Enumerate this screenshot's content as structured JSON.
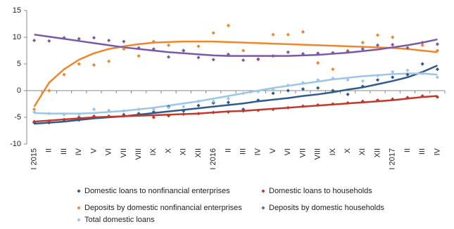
{
  "chart_data": {
    "type": "scatter-trend",
    "categories": [
      "I 2015",
      "II",
      "III",
      "IV",
      "V",
      "VI",
      "VII",
      "VIII",
      "IX",
      "X",
      "XI",
      "XII",
      "I 2016",
      "II",
      "III",
      "IV",
      "V",
      "VI",
      "VII",
      "VIII",
      "IX",
      "X",
      "XI",
      "XII",
      "I 2017",
      "II",
      "III",
      "IV"
    ],
    "ylim": [
      -10,
      15
    ],
    "yticks": [
      -10,
      -5,
      0,
      5,
      10,
      15
    ],
    "grid": false,
    "series": [
      {
        "name": "Domestic loans to nonfinancial enterprises",
        "color": "#2f5b8c",
        "values": [
          -6,
          -6,
          -5.5,
          -5.5,
          -5,
          -4.8,
          -4.5,
          -4.3,
          -4,
          -3,
          -3.8,
          -2.8,
          -2.3,
          -2.2,
          -3.5,
          -1.8,
          -0.5,
          0,
          0.3,
          0.5,
          0,
          -0.7,
          0.8,
          2,
          2.5,
          3,
          5,
          4
        ],
        "trend": [
          -6.2,
          -6,
          -5.8,
          -5.5,
          -5.2,
          -5,
          -4.8,
          -4.5,
          -4.2,
          -3.9,
          -3.6,
          -3.3,
          -3,
          -2.7,
          -2.4,
          -2,
          -1.7,
          -1.4,
          -1,
          -0.7,
          -0.3,
          0.2,
          0.6,
          1.2,
          1.8,
          2.5,
          3.5,
          4.7
        ]
      },
      {
        "name": "Domestic loans to households",
        "color": "#c0392b",
        "values": [
          -5.8,
          -5.7,
          -5.4,
          -5,
          -4.8,
          -4.8,
          -4.7,
          -4.6,
          -5,
          -4.7,
          -4.4,
          -4.3,
          -4.1,
          -4,
          -3.8,
          -3.7,
          -3.5,
          -3.2,
          -2.9,
          -2.7,
          -2.5,
          -2.3,
          -2,
          -1.8,
          -1.6,
          -1.3,
          -1,
          -1.2
        ],
        "trend": [
          -5.8,
          -5.6,
          -5.4,
          -5.2,
          -5,
          -4.9,
          -4.8,
          -4.7,
          -4.6,
          -4.5,
          -4.4,
          -4.3,
          -4.1,
          -3.9,
          -3.8,
          -3.6,
          -3.4,
          -3.2,
          -3,
          -2.8,
          -2.6,
          -2.4,
          -2.2,
          -2,
          -1.8,
          -1.5,
          -1.2,
          -1
        ]
      },
      {
        "name": "Deposits by domestic nonfinancial enterprises",
        "color": "#f0862a",
        "values": [
          -3.5,
          0,
          3,
          5,
          4.8,
          5.5,
          7.8,
          6.5,
          9.2,
          8.5,
          7.5,
          8.3,
          10.8,
          12.2,
          7.5,
          5.8,
          10.5,
          10.5,
          11,
          5.2,
          4,
          7.5,
          9,
          10.4,
          10,
          8,
          8.5,
          7.5
        ],
        "trend": [
          -3,
          1.5,
          4,
          5.8,
          7,
          7.8,
          8.3,
          8.7,
          9,
          9.1,
          9.2,
          9.2,
          9.2,
          9.1,
          9,
          8.9,
          8.8,
          8.7,
          8.6,
          8.5,
          8.4,
          8.3,
          8.2,
          8.1,
          8,
          7.8,
          7.5,
          7.2
        ]
      },
      {
        "name": "Deposits by domestic households",
        "color": "#7a5aa6",
        "values": [
          9.4,
          9.3,
          9.9,
          9.7,
          9.9,
          9.4,
          9.2,
          8,
          7.8,
          6.3,
          7.5,
          6.2,
          5.8,
          6.8,
          5.7,
          5.9,
          6.5,
          7.2,
          6.9,
          7,
          7.1,
          7.3,
          7.8,
          8.5,
          8.6,
          8,
          9,
          8.7
        ],
        "trend": [
          10.5,
          10.1,
          9.7,
          9.3,
          8.9,
          8.5,
          8.1,
          7.8,
          7.5,
          7.2,
          7,
          6.8,
          6.6,
          6.5,
          6.5,
          6.5,
          6.5,
          6.5,
          6.6,
          6.7,
          6.9,
          7.1,
          7.4,
          7.7,
          8.1,
          8.5,
          9,
          9.6
        ]
      },
      {
        "name": "Total domestic loans",
        "color": "#9cc6e8",
        "values": [
          -4,
          -4.3,
          -4.5,
          -4.5,
          -3.5,
          -3.7,
          -3.8,
          -3.5,
          -3.5,
          -3.2,
          -3,
          -2,
          -2,
          -1.5,
          -0.5,
          -0.2,
          0.2,
          1,
          1.5,
          2,
          2.3,
          2,
          1.8,
          2.8,
          3.5,
          3.8,
          3.2,
          2.5
        ],
        "trend": [
          -4.2,
          -4.3,
          -4.3,
          -4.3,
          -4.2,
          -4,
          -3.8,
          -3.5,
          -3.2,
          -2.8,
          -2.4,
          -2,
          -1.5,
          -1,
          -0.5,
          0,
          0.5,
          0.9,
          1.3,
          1.7,
          2.1,
          2.4,
          2.7,
          2.9,
          3.1,
          3.2,
          3.2,
          3
        ]
      }
    ]
  }
}
